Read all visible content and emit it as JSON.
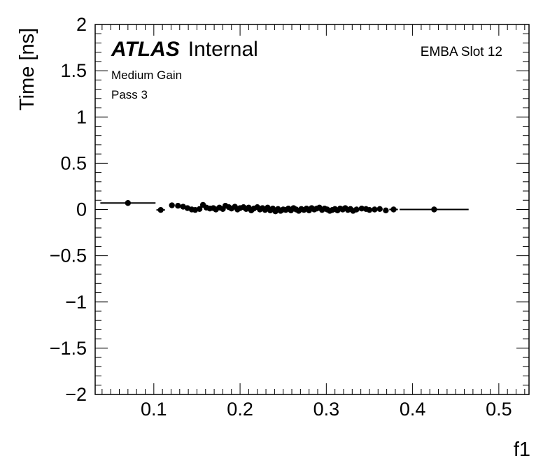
{
  "chart_data": {
    "type": "scatter",
    "title": "",
    "xlabel": "f1",
    "ylabel": "Time [ns]",
    "xlim": [
      0.032,
      0.535
    ],
    "ylim": [
      -2,
      2
    ],
    "x_ticks": [
      0.1,
      0.2,
      0.3,
      0.4,
      0.5
    ],
    "x_tick_labels": [
      "0.1",
      "0.2",
      "0.3",
      "0.4",
      "0.5"
    ],
    "y_ticks": [
      -2,
      -1.5,
      -1,
      -0.5,
      0,
      0.5,
      1,
      1.5,
      2
    ],
    "y_tick_labels": [
      "−2",
      "−1.5",
      "−1",
      "−0.5",
      "0",
      "0.5",
      "1",
      "1.5",
      "2"
    ],
    "grid": false,
    "annotations": {
      "atlas": "ATLAS",
      "internal": "Internal",
      "gain": "Medium Gain",
      "pass": "Pass 3",
      "module": "EMBA Slot 12"
    },
    "marker_color": "#000000",
    "points": [
      {
        "x": 0.07,
        "y": 0.07,
        "xerr": 0.032
      },
      {
        "x": 0.108,
        "y": -0.005,
        "xerr": 0.005
      },
      {
        "x": 0.121,
        "y": 0.045
      },
      {
        "x": 0.128,
        "y": 0.04
      },
      {
        "x": 0.134,
        "y": 0.03
      },
      {
        "x": 0.139,
        "y": 0.015
      },
      {
        "x": 0.144,
        "y": 0.0
      },
      {
        "x": 0.148,
        "y": -0.005
      },
      {
        "x": 0.153,
        "y": 0.005
      },
      {
        "x": 0.157,
        "y": 0.05
      },
      {
        "x": 0.161,
        "y": 0.02
      },
      {
        "x": 0.165,
        "y": 0.01
      },
      {
        "x": 0.169,
        "y": 0.015
      },
      {
        "x": 0.172,
        "y": 0.0
      },
      {
        "x": 0.176,
        "y": 0.02
      },
      {
        "x": 0.18,
        "y": 0.005
      },
      {
        "x": 0.183,
        "y": 0.04
      },
      {
        "x": 0.187,
        "y": 0.025
      },
      {
        "x": 0.19,
        "y": 0.01
      },
      {
        "x": 0.194,
        "y": 0.03
      },
      {
        "x": 0.197,
        "y": 0.0
      },
      {
        "x": 0.2,
        "y": 0.015
      },
      {
        "x": 0.204,
        "y": 0.025
      },
      {
        "x": 0.207,
        "y": 0.005
      },
      {
        "x": 0.21,
        "y": 0.02
      },
      {
        "x": 0.213,
        "y": -0.01
      },
      {
        "x": 0.216,
        "y": 0.01
      },
      {
        "x": 0.22,
        "y": 0.025
      },
      {
        "x": 0.223,
        "y": 0.0
      },
      {
        "x": 0.226,
        "y": 0.015
      },
      {
        "x": 0.229,
        "y": -0.005
      },
      {
        "x": 0.232,
        "y": 0.02
      },
      {
        "x": 0.235,
        "y": -0.01
      },
      {
        "x": 0.238,
        "y": 0.01
      },
      {
        "x": 0.241,
        "y": -0.02
      },
      {
        "x": 0.244,
        "y": 0.005
      },
      {
        "x": 0.247,
        "y": -0.015
      },
      {
        "x": 0.25,
        "y": 0.0
      },
      {
        "x": 0.253,
        "y": -0.005
      },
      {
        "x": 0.256,
        "y": 0.01
      },
      {
        "x": 0.259,
        "y": -0.01
      },
      {
        "x": 0.262,
        "y": 0.015
      },
      {
        "x": 0.265,
        "y": 0.0
      },
      {
        "x": 0.268,
        "y": -0.015
      },
      {
        "x": 0.271,
        "y": 0.005
      },
      {
        "x": 0.274,
        "y": -0.005
      },
      {
        "x": 0.277,
        "y": 0.01
      },
      {
        "x": 0.28,
        "y": -0.01
      },
      {
        "x": 0.283,
        "y": 0.015
      },
      {
        "x": 0.286,
        "y": 0.0
      },
      {
        "x": 0.289,
        "y": 0.01
      },
      {
        "x": 0.292,
        "y": 0.02
      },
      {
        "x": 0.295,
        "y": -0.005
      },
      {
        "x": 0.298,
        "y": 0.01
      },
      {
        "x": 0.301,
        "y": 0.0
      },
      {
        "x": 0.304,
        "y": -0.015
      },
      {
        "x": 0.307,
        "y": -0.005
      },
      {
        "x": 0.31,
        "y": 0.005
      },
      {
        "x": 0.313,
        "y": -0.01
      },
      {
        "x": 0.316,
        "y": 0.01
      },
      {
        "x": 0.319,
        "y": 0.0
      },
      {
        "x": 0.322,
        "y": 0.015
      },
      {
        "x": 0.325,
        "y": -0.005
      },
      {
        "x": 0.328,
        "y": 0.005
      },
      {
        "x": 0.331,
        "y": -0.015
      },
      {
        "x": 0.335,
        "y": 0.0
      },
      {
        "x": 0.341,
        "y": 0.01
      },
      {
        "x": 0.346,
        "y": 0.005
      },
      {
        "x": 0.35,
        "y": -0.005
      },
      {
        "x": 0.356,
        "y": 0.0
      },
      {
        "x": 0.362,
        "y": 0.005
      },
      {
        "x": 0.369,
        "y": -0.01
      },
      {
        "x": 0.378,
        "y": 0.0,
        "xerr": 0.005
      },
      {
        "x": 0.425,
        "y": 0.0,
        "xerr": 0.04
      }
    ]
  }
}
